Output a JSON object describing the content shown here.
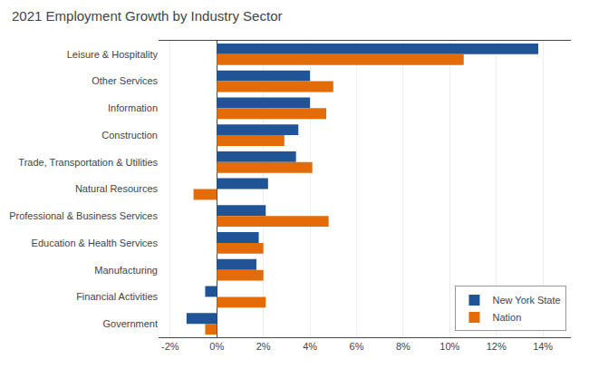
{
  "chart_data": {
    "type": "bar",
    "orientation": "horizontal",
    "title": "2021 Employment Growth by Industry Sector",
    "categories": [
      "Leisure & Hospitality",
      "Other Services",
      "Information",
      "Construction",
      "Trade, Transportation & Utilities",
      "Natural Resources",
      "Professional & Business Services",
      "Education & Health Services",
      "Manufacturing",
      "Financial Activities",
      "Government"
    ],
    "series": [
      {
        "name": "New York State",
        "color": "#1F5496",
        "values": [
          13.8,
          4.0,
          4.0,
          3.5,
          3.4,
          2.2,
          2.1,
          1.8,
          1.7,
          -0.5,
          -1.3
        ]
      },
      {
        "name": "Nation",
        "color": "#E36C09",
        "values": [
          10.6,
          5.0,
          4.7,
          2.9,
          4.1,
          -1.0,
          4.8,
          2.0,
          2.0,
          2.1,
          -0.5
        ]
      }
    ],
    "xlim": [
      -2.5,
      15.2
    ],
    "xticks": [
      {
        "value": -2,
        "label": "-2%"
      },
      {
        "value": 0,
        "label": "0%"
      },
      {
        "value": 2,
        "label": "2%"
      },
      {
        "value": 4,
        "label": "4%"
      },
      {
        "value": 6,
        "label": "6%"
      },
      {
        "value": 8,
        "label": "8%"
      },
      {
        "value": 10,
        "label": "10%"
      },
      {
        "value": 12,
        "label": "12%"
      },
      {
        "value": 14,
        "label": "14%"
      }
    ],
    "grid": true,
    "legend": "lower right"
  }
}
